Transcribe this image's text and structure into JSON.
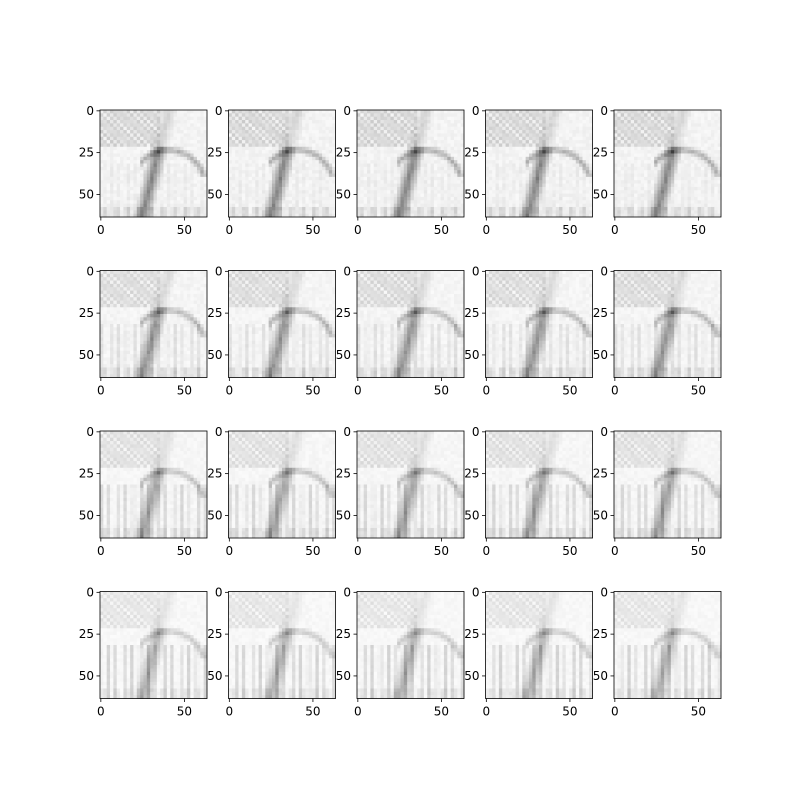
{
  "chart_data": {
    "type": "heatmap",
    "layout": {
      "rows": 4,
      "cols": 5
    },
    "colormap": "Greys",
    "axes": {
      "x_ticks": [
        0,
        50
      ],
      "y_ticks": [
        0,
        25,
        50
      ],
      "xlim": [
        -0.5,
        63.5
      ],
      "ylim": [
        63.5,
        -0.5
      ],
      "grid": false
    },
    "panels": [
      {
        "row": 0,
        "col": 0
      },
      {
        "row": 0,
        "col": 1
      },
      {
        "row": 0,
        "col": 2
      },
      {
        "row": 0,
        "col": 3
      },
      {
        "row": 0,
        "col": 4
      },
      {
        "row": 1,
        "col": 0
      },
      {
        "row": 1,
        "col": 1
      },
      {
        "row": 1,
        "col": 2
      },
      {
        "row": 1,
        "col": 3
      },
      {
        "row": 1,
        "col": 4
      },
      {
        "row": 2,
        "col": 0
      },
      {
        "row": 2,
        "col": 1
      },
      {
        "row": 2,
        "col": 2
      },
      {
        "row": 2,
        "col": 3
      },
      {
        "row": 2,
        "col": 4
      },
      {
        "row": 3,
        "col": 0
      },
      {
        "row": 3,
        "col": 1
      },
      {
        "row": 3,
        "col": 2
      },
      {
        "row": 3,
        "col": 3
      },
      {
        "row": 3,
        "col": 4
      }
    ]
  }
}
